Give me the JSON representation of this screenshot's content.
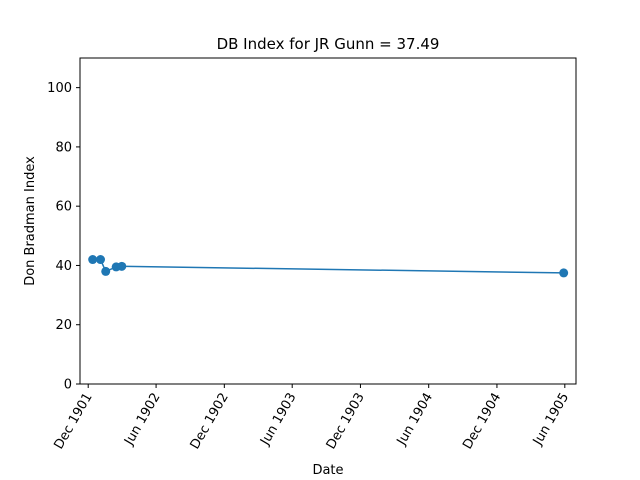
{
  "chart_data": {
    "type": "line",
    "title": "DB Index for JR Gunn = 37.49",
    "xlabel": "Date",
    "ylabel": "Don Bradman Index",
    "ylim": [
      0,
      110
    ],
    "yticks": [
      0,
      20,
      40,
      60,
      80,
      100
    ],
    "xlim": [
      "1901-11-09",
      "1905-07-01"
    ],
    "xticks": [
      {
        "date": "1901-12-01",
        "label": "Dec 1901"
      },
      {
        "date": "1902-06-01",
        "label": "Jun 1902"
      },
      {
        "date": "1902-12-01",
        "label": "Dec 1902"
      },
      {
        "date": "1903-06-01",
        "label": "Jun 1903"
      },
      {
        "date": "1903-12-01",
        "label": "Dec 1903"
      },
      {
        "date": "1904-06-01",
        "label": "Jun 1904"
      },
      {
        "date": "1904-12-01",
        "label": "Dec 1904"
      },
      {
        "date": "1905-06-01",
        "label": "Jun 1905"
      }
    ],
    "grid": false,
    "legend": false,
    "color": "#1f77b4",
    "series": [
      {
        "points": [
          {
            "x": "1901-12-13",
            "y": 42.0
          },
          {
            "x": "1902-01-03",
            "y": 42.0
          },
          {
            "x": "1902-01-17",
            "y": 38.0
          },
          {
            "x": "1902-02-14",
            "y": 39.5
          },
          {
            "x": "1902-03-01",
            "y": 39.7
          },
          {
            "x": "1905-05-29",
            "y": 37.49
          }
        ]
      }
    ]
  }
}
